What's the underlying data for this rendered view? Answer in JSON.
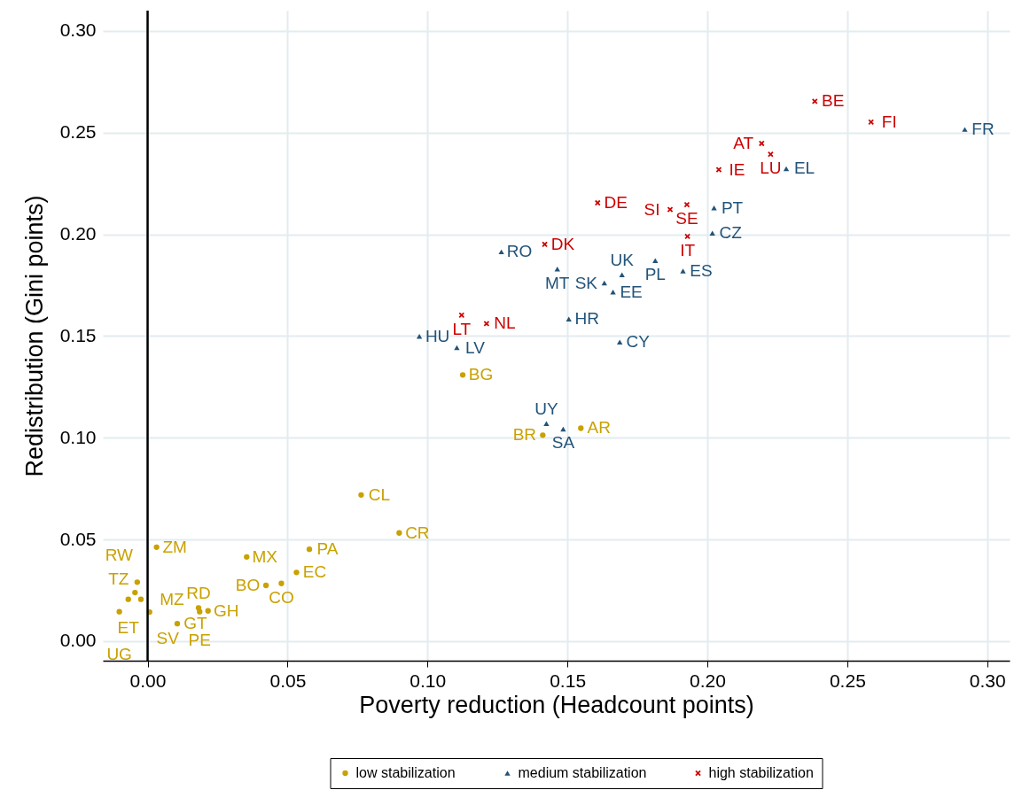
{
  "chart_data": {
    "type": "scatter",
    "xlabel": "Poverty reduction (Headcount points)",
    "ylabel": "Redistribution (Gini points)",
    "xlim": [
      -0.016,
      0.308
    ],
    "ylim": [
      -0.0096,
      0.31
    ],
    "xticks": [
      {
        "value": 0,
        "label": "0.00"
      },
      0.05,
      {
        "value": 0.1,
        "label": "0.10"
      },
      0.15,
      {
        "value": 0.2,
        "label": "0.20"
      },
      0.25,
      {
        "value": 0.3,
        "label": "0.30"
      }
    ],
    "yticks": [
      {
        "value": 0,
        "label": "0.00"
      },
      0.05,
      {
        "value": 0.1,
        "label": "0.10"
      },
      0.15,
      {
        "value": 0.2,
        "label": "0.20"
      },
      0.25,
      {
        "value": 0.3,
        "label": "0.30"
      }
    ],
    "grid": true,
    "legend": "bottom",
    "ref_lines": [
      {
        "axis": "x",
        "value": 0,
        "color": "#000000"
      }
    ],
    "series": [
      {
        "name": "low stabilization",
        "color": "#c9a100",
        "marker": "circle",
        "x": [
          0.0763,
          0.0899,
          0.0032,
          0.0354,
          0.0578,
          0.0532,
          0.0478,
          0.0423,
          0.0216,
          0.0182,
          0.0186,
          0.0106,
          -0.0037,
          -0.0045,
          -0.0069,
          -0.0024,
          -0.0101,
          0.0007,
          0.1126,
          0.1412,
          0.1548
        ],
        "values": [
          0.0719,
          0.0532,
          0.0462,
          0.0414,
          0.0452,
          0.0338,
          0.0284,
          0.0274,
          0.0149,
          0.0164,
          0.0145,
          0.0086,
          0.029,
          0.0239,
          0.0206,
          0.0206,
          0.0145,
          0.0143,
          0.1309,
          0.1013,
          0.1047
        ],
        "value_labels": [
          "CL",
          "CR",
          "ZM",
          "MX",
          "PA",
          "EC",
          "CO",
          "BO",
          "GH",
          "RD",
          "PE",
          "GT",
          "RW",
          "TZ",
          "ET",
          "MZ",
          "UG",
          "SV",
          "BG",
          "BR",
          "AR"
        ]
      },
      {
        "name": "medium stabilization",
        "color": "#225378",
        "marker": "triangle",
        "x": [
          0.1425,
          0.1485,
          0.1264,
          0.1464,
          0.1814,
          0.1913,
          0.1695,
          0.1632,
          0.1663,
          0.1505,
          0.0971,
          0.1105,
          0.1687,
          0.2018,
          0.292,
          0.2282,
          0.2024
        ],
        "values": [
          0.107,
          0.1043,
          0.1914,
          0.183,
          0.1871,
          0.182,
          0.1801,
          0.1761,
          0.1716,
          0.1584,
          0.1499,
          0.1443,
          0.147,
          0.2006,
          0.2516,
          0.2323,
          0.213
        ],
        "value_labels": [
          "UY",
          "SA",
          "RO",
          "MT",
          "PL",
          "ES",
          "UK",
          "SK",
          "EE",
          "HR",
          "HU",
          "LV",
          "CY",
          "CZ",
          "FR",
          "EL",
          "PT"
        ]
      },
      {
        "name": "high stabilization",
        "color": "#cc0000",
        "marker": "cross",
        "x": [
          0.1419,
          0.1122,
          0.1211,
          0.1929,
          0.2384,
          0.2585,
          0.2194,
          0.2226,
          0.2041,
          0.1608,
          0.1867,
          0.1927
        ],
        "values": [
          0.1951,
          0.1603,
          0.1561,
          0.199,
          0.2654,
          0.2552,
          0.2447,
          0.2394,
          0.2318,
          0.2155,
          0.2122,
          0.2146
        ],
        "value_labels": [
          "DK",
          "LT",
          "NL",
          "IT",
          "BE",
          "FI",
          "AT",
          "LU",
          "IE",
          "DE",
          "SI",
          "SE"
        ]
      }
    ]
  }
}
